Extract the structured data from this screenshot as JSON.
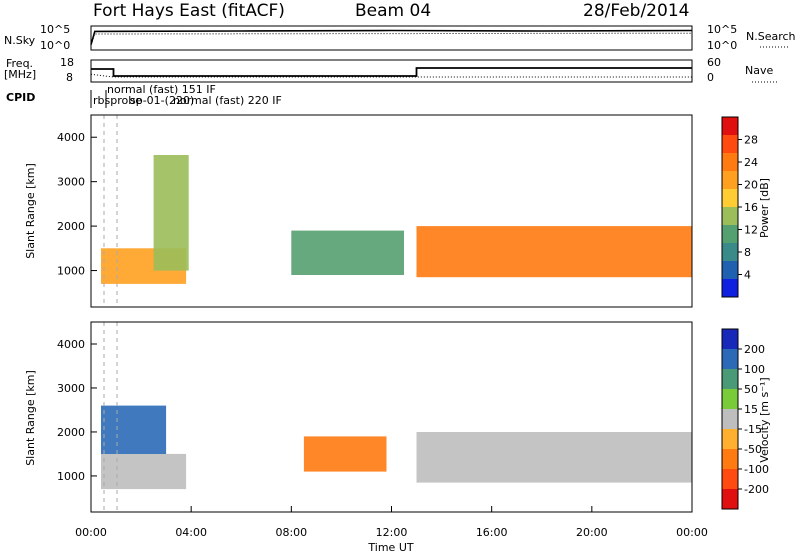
{
  "title": {
    "station": "Fort Hays East (fitACF)",
    "beam": "Beam 04",
    "date": "28/Feb/2014"
  },
  "panels": {
    "noise": {
      "left_label": "N.Sky",
      "right_label": "N.Search",
      "left_ticks": [
        "10^5",
        "10^0"
      ],
      "right_ticks": [
        "10^5",
        "10^0"
      ]
    },
    "freq": {
      "left_label_1": "Freq.",
      "left_label_2": "[MHz]",
      "left_ticks": [
        "18",
        "8"
      ],
      "right_ticks": [
        "60",
        "0"
      ],
      "right_label": "Nave"
    },
    "cpid": {
      "label": "CPID",
      "text_1": "normal (fast) 151 IF",
      "text_2": "rbsprobe",
      "text_3": "normal (fast) 220 IF",
      "text_4": "sp-01-(220)"
    }
  },
  "axes": {
    "ylabel": "Slant Range [km]",
    "xlabel": "Time UT",
    "y_ticks": [
      "1000",
      "2000",
      "3000",
      "4000"
    ],
    "x_ticks": [
      "00:00",
      "04:00",
      "08:00",
      "12:00",
      "16:00",
      "20:00",
      "00:00"
    ]
  },
  "colorbars": {
    "power": {
      "label": "Power [dB]",
      "ticks": [
        "4",
        "8",
        "12",
        "16",
        "20",
        "24",
        "28"
      ],
      "colors": [
        "#1020e0",
        "#2060b0",
        "#3a8a8a",
        "#55a070",
        "#9bbe5a",
        "#ffcc33",
        "#ffa020",
        "#ff7a10",
        "#ff4a10",
        "#e01010"
      ]
    },
    "velocity": {
      "label": "Velocity [m s⁻¹]",
      "ticks": [
        "200",
        "100",
        "50",
        "15",
        "-15",
        "-50",
        "-100",
        "-200"
      ],
      "colors": [
        "#1828b8",
        "#2c6ab8",
        "#4a9a78",
        "#7acb3a",
        "#bebebe",
        "#ffb030",
        "#ff7a10",
        "#ff4a10",
        "#e01010"
      ]
    }
  },
  "chart_data": {
    "type": "heatmap",
    "title": "Fort Hays East (fitACF)",
    "x_range_hours": [
      0,
      24
    ],
    "y_range_km": [
      180,
      4500
    ],
    "xlabel": "Time UT",
    "ylabel": "Slant Range [km]",
    "series": [
      {
        "name": "Power [dB]",
        "regions": [
          {
            "t": [
              0.4,
              3.8
            ],
            "range": [
              700,
              1500
            ],
            "value": 20
          },
          {
            "t": [
              2.5,
              3.9
            ],
            "range": [
              1000,
              3600
            ],
            "value": 12
          },
          {
            "t": [
              8.0,
              12.5
            ],
            "range": [
              900,
              1900
            ],
            "value": 10
          },
          {
            "t": [
              13.0,
              24.0
            ],
            "range": [
              850,
              2000
            ],
            "value": 22
          }
        ]
      },
      {
        "name": "Velocity [m s-1]",
        "regions": [
          {
            "t": [
              0.4,
              3.8
            ],
            "range": [
              700,
              1500
            ],
            "value": 0
          },
          {
            "t": [
              0.4,
              3.0
            ],
            "range": [
              1500,
              2600
            ],
            "value": 120
          },
          {
            "t": [
              8.5,
              11.8
            ],
            "range": [
              1100,
              1900
            ],
            "value": -50
          },
          {
            "t": [
              13.0,
              24.0
            ],
            "range": [
              850,
              2000
            ],
            "value": 0
          }
        ]
      }
    ],
    "noise_sky": [
      {
        "t": 0.0,
        "v": 1.0
      },
      {
        "t": 0.15,
        "v": 4.0
      },
      {
        "t": 6.0,
        "v": 4.1
      },
      {
        "t": 12.0,
        "v": 4.2
      },
      {
        "t": 18.0,
        "v": 4.1
      },
      {
        "t": 24.0,
        "v": 4.2
      }
    ],
    "noise_search": [
      {
        "t": 0.0,
        "v": 1.0
      },
      {
        "t": 0.15,
        "v": 3.4
      },
      {
        "t": 12.0,
        "v": 3.5
      },
      {
        "t": 24.0,
        "v": 3.6
      }
    ],
    "freq_mhz": [
      {
        "t": 0.0,
        "v": 14.0
      },
      {
        "t": 0.9,
        "v": 14.0
      },
      {
        "t": 0.9,
        "v": 10.5
      },
      {
        "t": 13.0,
        "v": 10.5
      },
      {
        "t": 13.0,
        "v": 14.5
      },
      {
        "t": 24.0,
        "v": 14.5
      }
    ],
    "nave": [
      {
        "t": 0.0,
        "v": 20
      },
      {
        "t": 0.9,
        "v": 12
      },
      {
        "t": 13.0,
        "v": 12
      },
      {
        "t": 24.0,
        "v": 12
      }
    ]
  }
}
